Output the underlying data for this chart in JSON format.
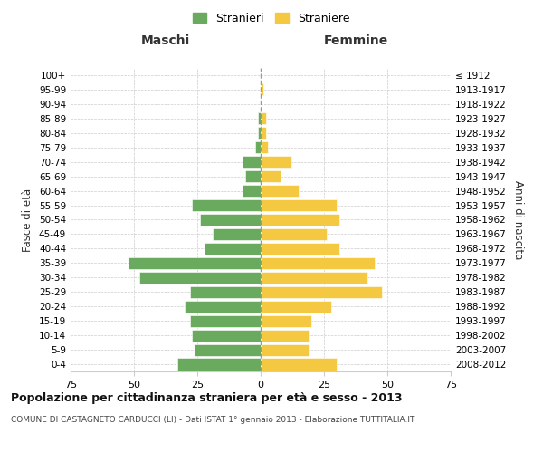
{
  "age_groups": [
    "0-4",
    "5-9",
    "10-14",
    "15-19",
    "20-24",
    "25-29",
    "30-34",
    "35-39",
    "40-44",
    "45-49",
    "50-54",
    "55-59",
    "60-64",
    "65-69",
    "70-74",
    "75-79",
    "80-84",
    "85-89",
    "90-94",
    "95-99",
    "100+"
  ],
  "birth_years": [
    "2008-2012",
    "2003-2007",
    "1998-2002",
    "1993-1997",
    "1988-1992",
    "1983-1987",
    "1978-1982",
    "1973-1977",
    "1968-1972",
    "1963-1967",
    "1958-1962",
    "1953-1957",
    "1948-1952",
    "1943-1947",
    "1938-1942",
    "1933-1937",
    "1928-1932",
    "1923-1927",
    "1918-1922",
    "1913-1917",
    "≤ 1912"
  ],
  "males": [
    33,
    26,
    27,
    28,
    30,
    28,
    48,
    52,
    22,
    19,
    24,
    27,
    7,
    6,
    7,
    2,
    1,
    1,
    0,
    0,
    0
  ],
  "females": [
    30,
    19,
    19,
    20,
    28,
    48,
    42,
    45,
    31,
    26,
    31,
    30,
    15,
    8,
    12,
    3,
    2,
    2,
    0,
    1,
    0
  ],
  "male_color": "#6aaa5f",
  "female_color": "#f5c842",
  "title": "Popolazione per cittadinanza straniera per età e sesso - 2013",
  "subtitle": "COMUNE DI CASTAGNETO CARDUCCI (LI) - Dati ISTAT 1° gennaio 2013 - Elaborazione TUTTITALIA.IT",
  "xlabel_left": "Maschi",
  "xlabel_right": "Femmine",
  "ylabel_left": "Fasce di età",
  "ylabel_right": "Anni di nascita",
  "legend_male": "Stranieri",
  "legend_female": "Straniere",
  "xlim": 75,
  "background_color": "#ffffff",
  "grid_color": "#cccccc"
}
